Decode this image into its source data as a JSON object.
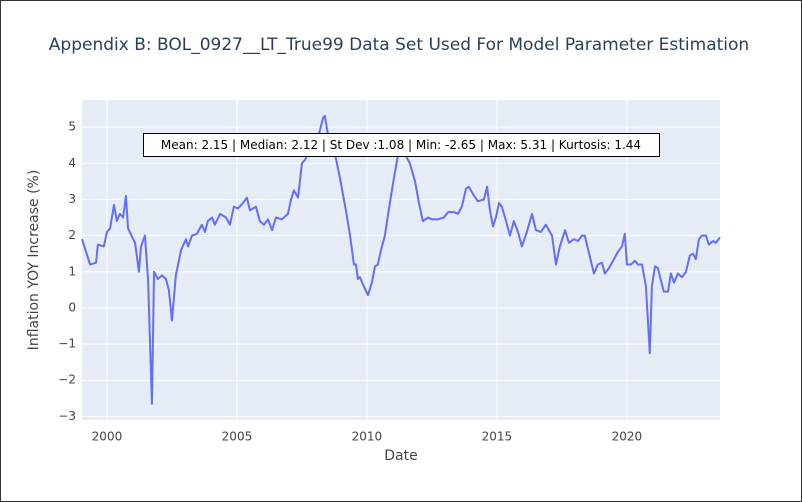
{
  "chart_data": {
    "type": "line",
    "title": "Appendix B: BOL_0927__LT_True99 Data Set Used For Model Parameter Estimation",
    "xlabel": "Date",
    "ylabel": "Inflation YOY Increase (%)",
    "annotation": "Mean: 2.15 | Median: 2.12 | St Dev :1.08 | Min: -2.65 | Max: 5.31 | Kurtosis: 1.44",
    "grid": true,
    "xlim": [
      1999.04,
      2023.58
    ],
    "ylim": [
      -3.1,
      5.75
    ],
    "xticks": [
      2000,
      2005,
      2010,
      2015,
      2020
    ],
    "yticks": [
      {
        "value": -3,
        "label": "−3"
      },
      {
        "value": -2,
        "label": "−2"
      },
      {
        "value": -1,
        "label": "−1"
      },
      0,
      1,
      2,
      3,
      4,
      5
    ],
    "x": [
      1999.04,
      1999.35,
      1999.58,
      1999.65,
      1999.88,
      2000.0,
      2000.12,
      2000.27,
      2000.38,
      2000.5,
      2000.62,
      2000.73,
      2000.81,
      2001.08,
      2001.23,
      2001.31,
      2001.46,
      2001.58,
      2001.73,
      2001.81,
      2001.96,
      2002.12,
      2002.27,
      2002.38,
      2002.5,
      2002.65,
      2002.85,
      2003.04,
      2003.12,
      2003.27,
      2003.46,
      2003.65,
      2003.77,
      2003.88,
      2004.04,
      2004.15,
      2004.35,
      2004.58,
      2004.73,
      2004.88,
      2005.04,
      2005.23,
      2005.38,
      2005.5,
      2005.73,
      2005.88,
      2006.04,
      2006.19,
      2006.35,
      2006.5,
      2006.73,
      2006.96,
      2007.08,
      2007.19,
      2007.35,
      2007.5,
      2007.62,
      2007.77,
      2007.96,
      2008.19,
      2008.31,
      2008.38,
      2008.5,
      2008.73,
      2008.96,
      2009.19,
      2009.35,
      2009.5,
      2009.58,
      2009.65,
      2009.73,
      2009.88,
      2010.04,
      2010.19,
      2010.31,
      2010.42,
      2010.54,
      2010.69,
      2010.88,
      2011.04,
      2011.19,
      2011.35,
      2011.5,
      2011.65,
      2011.85,
      2012.0,
      2012.15,
      2012.35,
      2012.5,
      2012.73,
      2012.96,
      2013.12,
      2013.35,
      2013.5,
      2013.65,
      2013.81,
      2013.92,
      2014.12,
      2014.27,
      2014.5,
      2014.62,
      2014.73,
      2014.85,
      2014.96,
      2015.08,
      2015.19,
      2015.35,
      2015.5,
      2015.65,
      2015.81,
      2015.96,
      2016.15,
      2016.35,
      2016.5,
      2016.69,
      2016.88,
      2017.12,
      2017.27,
      2017.42,
      2017.62,
      2017.77,
      2017.96,
      2018.12,
      2018.27,
      2018.38,
      2018.58,
      2018.73,
      2018.88,
      2019.04,
      2019.15,
      2019.31,
      2019.5,
      2019.65,
      2019.81,
      2019.92,
      2020.0,
      2020.15,
      2020.31,
      2020.42,
      2020.58,
      2020.73,
      2020.88,
      2020.96,
      2021.08,
      2021.19,
      2021.31,
      2021.42,
      2021.58,
      2021.69,
      2021.81,
      2021.96,
      2022.12,
      2022.27,
      2022.42,
      2022.54,
      2022.65,
      2022.77,
      2022.88,
      2023.04,
      2023.15,
      2023.31,
      2023.42,
      2023.58
    ],
    "series": [
      {
        "color": "#636efa",
        "values": [
          1.9,
          1.2,
          1.25,
          1.75,
          1.7,
          2.1,
          2.2,
          2.85,
          2.4,
          2.6,
          2.5,
          3.1,
          2.2,
          1.8,
          1.0,
          1.7,
          2.0,
          0.8,
          -2.65,
          1.0,
          0.8,
          0.9,
          0.8,
          0.5,
          -0.35,
          0.9,
          1.6,
          1.9,
          1.7,
          2.0,
          2.05,
          2.3,
          2.1,
          2.4,
          2.5,
          2.3,
          2.6,
          2.5,
          2.3,
          2.8,
          2.75,
          2.9,
          3.05,
          2.7,
          2.8,
          2.4,
          2.3,
          2.45,
          2.15,
          2.5,
          2.45,
          2.6,
          3.0,
          3.25,
          3.05,
          4.0,
          4.1,
          4.3,
          4.5,
          4.9,
          5.25,
          5.31,
          4.8,
          4.4,
          3.6,
          2.7,
          2.0,
          1.2,
          1.2,
          0.8,
          0.85,
          0.6,
          0.35,
          0.7,
          1.15,
          1.2,
          1.6,
          2.0,
          2.9,
          3.6,
          4.2,
          4.25,
          4.2,
          4.0,
          3.5,
          2.9,
          2.4,
          2.5,
          2.45,
          2.45,
          2.5,
          2.65,
          2.65,
          2.6,
          2.8,
          3.3,
          3.35,
          3.1,
          2.95,
          3.0,
          3.35,
          2.7,
          2.25,
          2.5,
          2.9,
          2.8,
          2.4,
          2.0,
          2.4,
          2.1,
          1.7,
          2.1,
          2.6,
          2.15,
          2.1,
          2.3,
          2.0,
          1.2,
          1.7,
          2.15,
          1.8,
          1.9,
          1.85,
          2.0,
          2.0,
          1.4,
          0.95,
          1.2,
          1.25,
          0.95,
          1.1,
          1.35,
          1.55,
          1.7,
          2.05,
          1.2,
          1.2,
          1.3,
          1.2,
          1.2,
          0.6,
          -1.25,
          0.6,
          1.15,
          1.1,
          0.75,
          0.45,
          0.45,
          0.95,
          0.7,
          0.95,
          0.85,
          1.0,
          1.45,
          1.5,
          1.35,
          1.9,
          2.0,
          2.0,
          1.75,
          1.85,
          1.8,
          1.95
        ]
      }
    ]
  }
}
